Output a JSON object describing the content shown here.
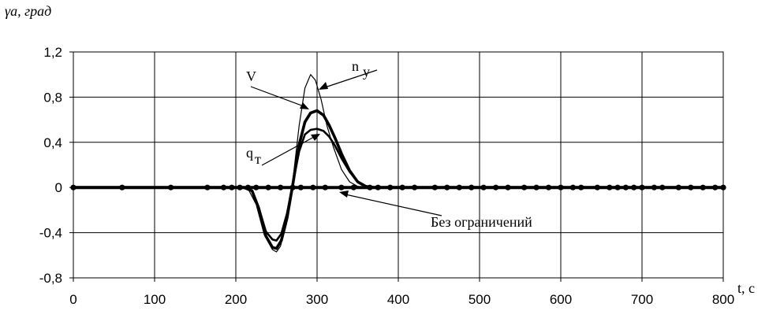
{
  "chart_data": {
    "type": "line",
    "ylabel": "γa, град",
    "xlabel": "t, с",
    "xlim": [
      0,
      800
    ],
    "ylim": [
      -0.8,
      1.2
    ],
    "xticks": [
      0,
      100,
      200,
      300,
      400,
      500,
      600,
      700,
      800
    ],
    "yticks": [
      1.2,
      0.8,
      0.4,
      0,
      -0.4,
      -0.8
    ],
    "ytick_labels": [
      "1,2",
      "0,8",
      "0,4",
      "0",
      "-0,4",
      "-0,8"
    ],
    "grid": true,
    "annotations": [
      "V",
      "n",
      "y",
      "q",
      "т",
      "Без ограничений"
    ],
    "series": [
      {
        "name": "n_y",
        "color": "#000000",
        "x": [
          0,
          200,
          215,
          225,
          235,
          245,
          250,
          255,
          262,
          270,
          278,
          285,
          292,
          298,
          305,
          312,
          320,
          330,
          340,
          350,
          360,
          370,
          800
        ],
        "y": [
          0,
          0,
          -0.01,
          -0.15,
          -0.42,
          -0.55,
          -0.57,
          -0.52,
          -0.33,
          0.05,
          0.55,
          0.88,
          1.0,
          0.95,
          0.78,
          0.55,
          0.36,
          0.16,
          0.05,
          0.01,
          0,
          0,
          0
        ]
      },
      {
        "name": "V",
        "color": "#000000",
        "x": [
          0,
          210,
          220,
          228,
          237,
          245,
          250,
          256,
          263,
          270,
          278,
          285,
          292,
          300,
          308,
          315,
          322,
          330,
          340,
          350,
          360,
          370,
          800
        ],
        "y": [
          0,
          0,
          -0.03,
          -0.18,
          -0.43,
          -0.53,
          -0.54,
          -0.47,
          -0.27,
          0.02,
          0.38,
          0.58,
          0.66,
          0.68,
          0.64,
          0.55,
          0.44,
          0.3,
          0.15,
          0.05,
          0.01,
          0,
          0
        ]
      },
      {
        "name": "q_т",
        "color": "#000000",
        "x": [
          0,
          210,
          220,
          228,
          237,
          245,
          250,
          256,
          263,
          270,
          278,
          285,
          292,
          300,
          308,
          315,
          322,
          330,
          340,
          350,
          360,
          370,
          800
        ],
        "y": [
          0,
          0,
          -0.03,
          -0.17,
          -0.39,
          -0.46,
          -0.47,
          -0.41,
          -0.23,
          0.03,
          0.32,
          0.47,
          0.51,
          0.52,
          0.5,
          0.45,
          0.37,
          0.26,
          0.14,
          0.05,
          0.01,
          0,
          0
        ]
      },
      {
        "name": "Без ограничений",
        "color": "#000000",
        "x": [
          0,
          60,
          120,
          165,
          185,
          195,
          205,
          215,
          225,
          240,
          255,
          270,
          280,
          295,
          310,
          330,
          345,
          365,
          375,
          390,
          405,
          420,
          445,
          460,
          475,
          490,
          505,
          520,
          535,
          555,
          570,
          585,
          600,
          615,
          625,
          645,
          660,
          670,
          680,
          690,
          700,
          715,
          725,
          745,
          760,
          775,
          790,
          800
        ],
        "y": [
          0,
          0,
          0,
          0,
          0,
          0,
          0,
          0,
          0,
          0,
          0,
          0,
          0,
          0,
          0,
          0,
          0,
          0,
          0,
          0,
          0,
          0,
          0,
          0,
          0,
          0,
          0,
          0,
          0,
          0,
          0,
          0,
          0,
          0,
          0,
          0,
          0,
          0,
          0,
          0,
          0,
          0,
          0,
          0,
          0,
          0,
          0,
          0
        ]
      }
    ]
  }
}
